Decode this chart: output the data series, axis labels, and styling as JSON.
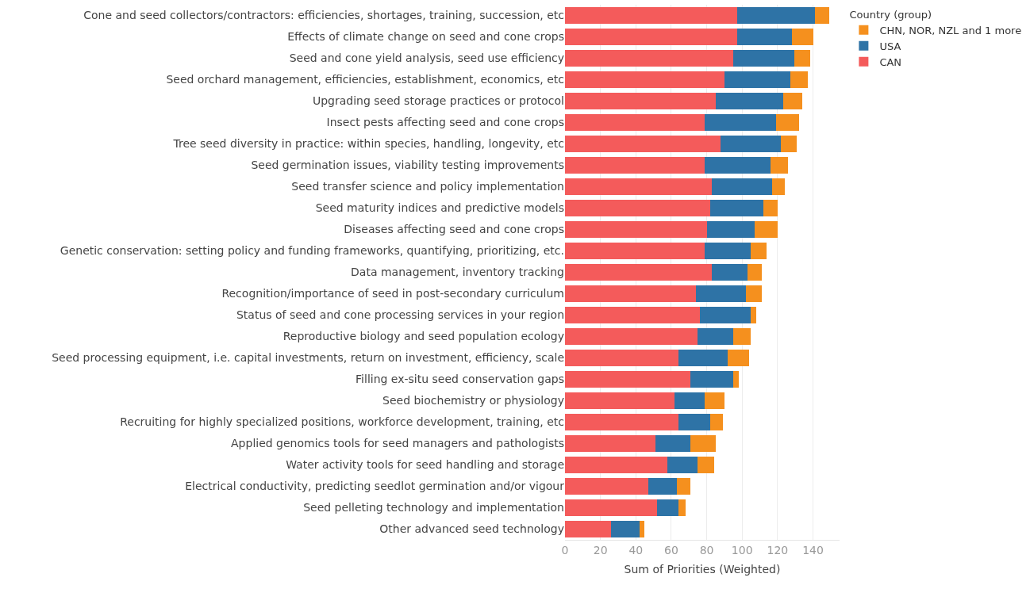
{
  "chart_data": {
    "type": "bar",
    "orientation": "horizontal",
    "stacked": true,
    "xlabel": "Sum of Priorities (Weighted)",
    "legend_title": "Country (group)",
    "legend": "top right",
    "grid": "x",
    "categories": [
      "Cone and seed collectors/contractors: efficiencies, shortages, training, succession, etc",
      "Effects of climate change on seed and cone crops",
      "Seed and cone yield analysis, seed use efficiency",
      "Seed orchard management, efficiencies, establishment, economics, etc",
      "Upgrading seed storage practices or protocol",
      "Insect pests affecting seed and cone crops",
      "Tree seed diversity in practice: within species, handling, longevity, etc",
      "Seed germination issues, viability testing improvements",
      "Seed transfer science and policy implementation",
      "Seed maturity indices and predictive models",
      "Diseases affecting seed and cone crops",
      "Genetic conservation: setting policy and funding frameworks, quantifying, prioritizing, etc.",
      "Data management, inventory tracking",
      "Recognition/importance of seed in post-secondary curriculum",
      "Status of seed and cone processing services in your region",
      "Reproductive biology and seed population ecology",
      "Seed processing equipment, i.e. capital investments, return on investment, efficiency, scale",
      "Filling ex-situ seed conservation gaps",
      "Seed biochemistry or physiology",
      "Recruiting for highly specialized positions, workforce development, training, etc",
      "Applied genomics tools for seed managers and pathologists",
      "Water activity tools for seed handling and storage",
      "Electrical conductivity, predicting seedlot germination and/or vigour",
      "Seed pelleting technology and implementation",
      "Other advanced seed technology"
    ],
    "series": [
      {
        "name": "CAN",
        "color": "#f45b5b",
        "values": [
          97,
          97,
          95,
          90,
          85,
          79,
          88,
          79,
          83,
          82,
          80,
          79,
          83,
          74,
          76,
          75,
          64,
          71,
          62,
          64,
          51,
          58,
          47,
          52,
          26
        ]
      },
      {
        "name": "USA",
        "color": "#2e73a6",
        "values": [
          44,
          31,
          34.5,
          37,
          38,
          40,
          34,
          37,
          34,
          30,
          27,
          26,
          20,
          28,
          29,
          20,
          28,
          24,
          17,
          18,
          20,
          17,
          16,
          12,
          16
        ]
      },
      {
        "name": "CHN, NOR, NZL and 1 more",
        "color": "#f5901e",
        "values": [
          8,
          12,
          8.7,
          10,
          11,
          13,
          9,
          10,
          7,
          8,
          13,
          9,
          8,
          9,
          3,
          10,
          12,
          3,
          11,
          7,
          14,
          9,
          8,
          4,
          3
        ]
      }
    ],
    "xlim": [
      0,
      155
    ],
    "xticks": [
      0,
      20,
      40,
      60,
      80,
      100,
      120,
      140
    ]
  }
}
